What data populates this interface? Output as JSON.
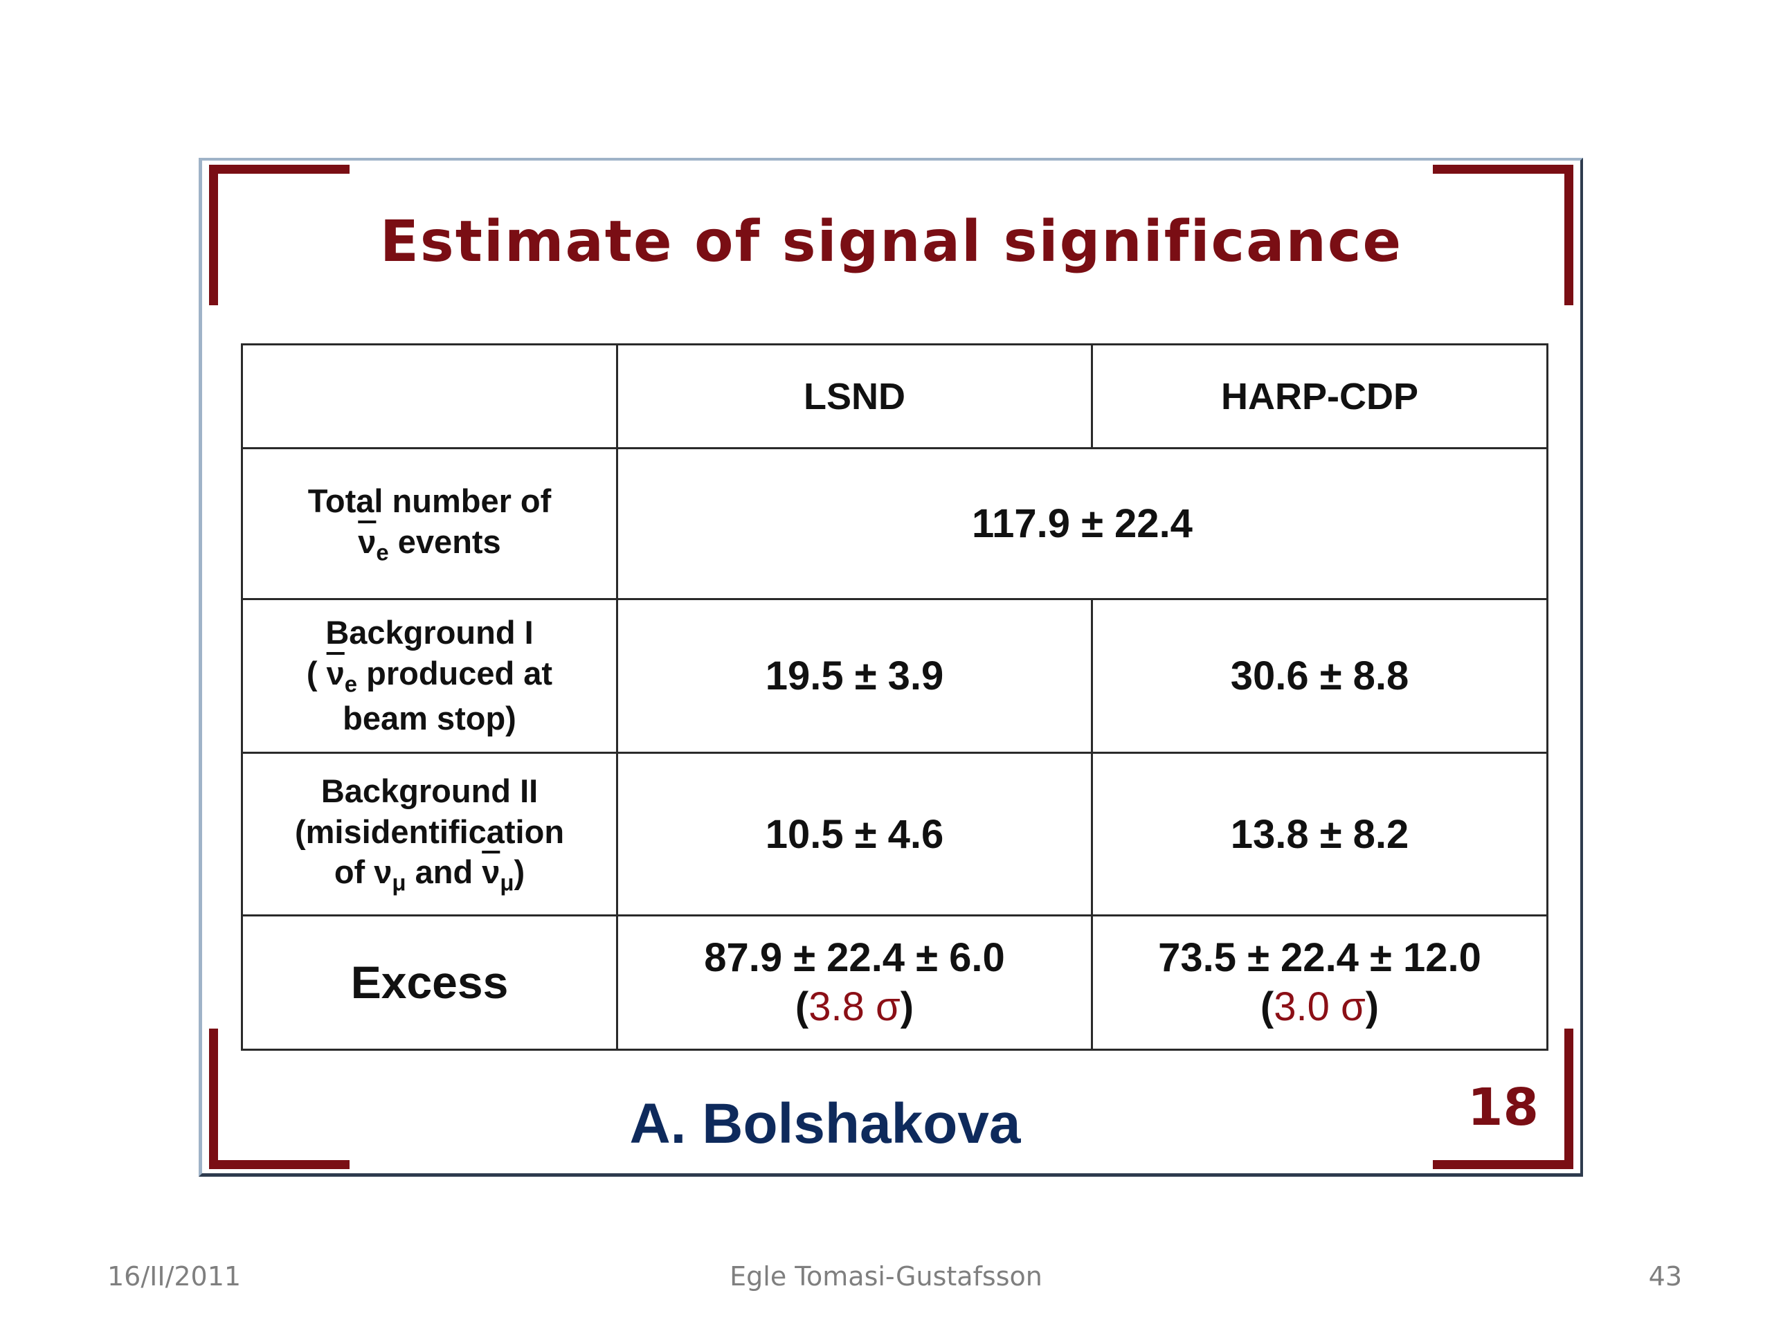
{
  "slide": {
    "title": "Estimate of signal significance",
    "author": "A. Bolshakova",
    "page_number": "18"
  },
  "table": {
    "headers": [
      "",
      "LSND",
      "HARP-CDP"
    ],
    "total": {
      "label_line1": "Total number of",
      "nu": "ν",
      "sub_e": "e",
      "label_suffix": " events",
      "value": "117.9  ± 22.4"
    },
    "bg1": {
      "open": "( ",
      "nu": "ν",
      "sub_e": "e",
      "label_mid": " produced at",
      "label_line1": "Background I",
      "label_line3": "beam stop)",
      "lsnd": "19.5  ± 3.9",
      "harp": "30.6  ± 8.8"
    },
    "bg2": {
      "label_line1": "Background II",
      "label_line2": "(misidentification",
      "of": "of ",
      "nu": "ν",
      "sub_mu": "μ",
      "and": " and ",
      "close": ")",
      "lsnd": "10.5  ± 4.6",
      "harp": "13.8  ± 8.2"
    },
    "excess": {
      "label": "Excess",
      "lsnd_line1": "87.9  ± 22.4  ± 6.0",
      "lsnd_sigma": "3.8  σ",
      "harp_line1": "73.5  ± 22.4  ± 12.0",
      "harp_sigma": "3.0  σ",
      "paren_open": "(",
      "paren_close": ")"
    }
  },
  "footer": {
    "date": "16/II/2011",
    "presenter": "Egle Tomasi-Gustafsson",
    "slide_number": "43"
  },
  "colors": {
    "title": "#7a0e14",
    "author": "#0e2a5c",
    "sigma": "#8b0f16",
    "footer": "#7f7f7f"
  }
}
